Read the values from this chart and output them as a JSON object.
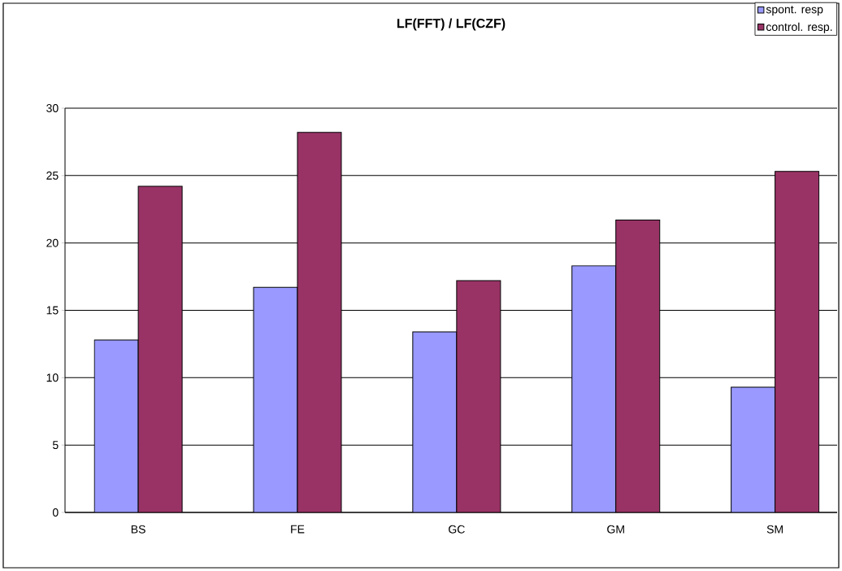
{
  "chart_data": {
    "type": "bar",
    "title": "LF(FFT) / LF(CZF)",
    "categories": [
      "BS",
      "FE",
      "GC",
      "GM",
      "SM"
    ],
    "series": [
      {
        "name": "spont. resp",
        "color": "#9999ff",
        "values": [
          12.8,
          16.7,
          13.4,
          18.3,
          9.3
        ]
      },
      {
        "name": "control. resp.",
        "color": "#993366",
        "values": [
          24.2,
          28.2,
          17.2,
          21.7,
          25.3
        ]
      }
    ],
    "ylim": [
      0,
      30
    ],
    "yticks": [
      0,
      5,
      10,
      15,
      20,
      25,
      30
    ],
    "grid": "y",
    "legend": "top right"
  }
}
